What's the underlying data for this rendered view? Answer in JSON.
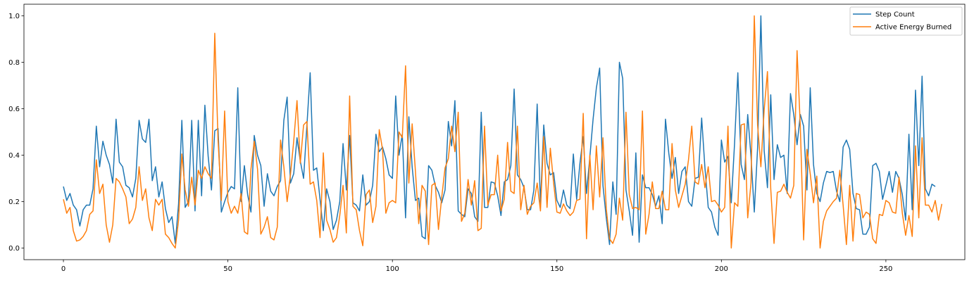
{
  "chart_data": {
    "type": "line",
    "title": "",
    "xlabel": "",
    "ylabel": "",
    "xlim": [
      -12,
      274
    ],
    "ylim": [
      -0.05,
      1.05
    ],
    "xticks": [
      0,
      50,
      100,
      150,
      200,
      250
    ],
    "yticks": [
      0.0,
      0.2,
      0.4,
      0.6,
      0.8,
      1.0
    ],
    "xtick_labels": [
      "0",
      "50",
      "100",
      "150",
      "200",
      "250"
    ],
    "ytick_labels": [
      "0.0",
      "0.2",
      "0.4",
      "0.6",
      "0.8",
      "1.0"
    ],
    "grid": false,
    "legend_position": "top-right",
    "series": [
      {
        "name": "Step Count",
        "color": "#1f77b4",
        "values": [
          0.265,
          0.205,
          0.235,
          0.185,
          0.165,
          0.095,
          0.165,
          0.185,
          0.185,
          0.255,
          0.525,
          0.35,
          0.46,
          0.4,
          0.36,
          0.28,
          0.555,
          0.37,
          0.35,
          0.27,
          0.26,
          0.22,
          0.3,
          0.55,
          0.47,
          0.455,
          0.555,
          0.29,
          0.35,
          0.22,
          0.285,
          0.17,
          0.11,
          0.135,
          0.02,
          0.19,
          0.55,
          0.175,
          0.2,
          0.55,
          0.16,
          0.55,
          0.225,
          0.615,
          0.395,
          0.25,
          0.505,
          0.515,
          0.155,
          0.2,
          0.24,
          0.265,
          0.255,
          0.69,
          0.2,
          0.355,
          0.23,
          0.155,
          0.485,
          0.4,
          0.355,
          0.18,
          0.32,
          0.245,
          0.225,
          0.265,
          0.29,
          0.55,
          0.65,
          0.28,
          0.32,
          0.475,
          0.375,
          0.3,
          0.525,
          0.755,
          0.335,
          0.345,
          0.21,
          0.075,
          0.255,
          0.2,
          0.08,
          0.12,
          0.2,
          0.45,
          0.25,
          0.485,
          0.195,
          0.185,
          0.16,
          0.315,
          0.185,
          0.2,
          0.27,
          0.49,
          0.415,
          0.435,
          0.385,
          0.315,
          0.3,
          0.655,
          0.4,
          0.49,
          0.13,
          0.565,
          0.35,
          0.205,
          0.215,
          0.05,
          0.04,
          0.355,
          0.335,
          0.27,
          0.24,
          0.195,
          0.25,
          0.545,
          0.44,
          0.635,
          0.16,
          0.145,
          0.135,
          0.255,
          0.235,
          0.135,
          0.115,
          0.585,
          0.175,
          0.175,
          0.285,
          0.28,
          0.225,
          0.14,
          0.285,
          0.295,
          0.355,
          0.685,
          0.315,
          0.295,
          0.26,
          0.165,
          0.165,
          0.25,
          0.62,
          0.19,
          0.53,
          0.365,
          0.315,
          0.325,
          0.205,
          0.175,
          0.25,
          0.185,
          0.17,
          0.405,
          0.21,
          0.365,
          0.48,
          0.235,
          0.39,
          0.555,
          0.69,
          0.775,
          0.27,
          0.13,
          0.015,
          0.285,
          0.145,
          0.8,
          0.73,
          0.25,
          0.16,
          0.055,
          0.41,
          0.025,
          0.315,
          0.26,
          0.26,
          0.23,
          0.18,
          0.225,
          0.105,
          0.555,
          0.41,
          0.3,
          0.39,
          0.235,
          0.33,
          0.35,
          0.2,
          0.18,
          0.3,
          0.305,
          0.56,
          0.345,
          0.175,
          0.155,
          0.09,
          0.055,
          0.465,
          0.37,
          0.395,
          0.195,
          0.45,
          0.755,
          0.36,
          0.295,
          0.575,
          0.395,
          0.155,
          0.43,
          1.0,
          0.42,
          0.26,
          0.66,
          0.295,
          0.445,
          0.39,
          0.4,
          0.235,
          0.665,
          0.575,
          0.445,
          0.575,
          0.525,
          0.25,
          0.69,
          0.36,
          0.235,
          0.2,
          0.28,
          0.33,
          0.325,
          0.33,
          0.245,
          0.2,
          0.435,
          0.465,
          0.425,
          0.235,
          0.17,
          0.165,
          0.06,
          0.06,
          0.09,
          0.355,
          0.365,
          0.33,
          0.21,
          0.27,
          0.33,
          0.24,
          0.33,
          0.3,
          0.23,
          0.12,
          0.49,
          0.165,
          0.68,
          0.355,
          0.74,
          0.255,
          0.225,
          0.275,
          0.265
        ]
      },
      {
        "name": "Active Energy Burned",
        "color": "#ff7f0e",
        "values": [
          0.21,
          0.15,
          0.175,
          0.075,
          0.03,
          0.035,
          0.05,
          0.075,
          0.145,
          0.16,
          0.38,
          0.235,
          0.275,
          0.1,
          0.025,
          0.1,
          0.3,
          0.285,
          0.255,
          0.22,
          0.105,
          0.125,
          0.175,
          0.35,
          0.205,
          0.255,
          0.13,
          0.075,
          0.21,
          0.185,
          0.21,
          0.06,
          0.045,
          0.02,
          0.0,
          0.12,
          0.405,
          0.25,
          0.18,
          0.305,
          0.185,
          0.335,
          0.3,
          0.35,
          0.32,
          0.3,
          0.925,
          0.465,
          0.205,
          0.59,
          0.2,
          0.15,
          0.18,
          0.15,
          0.235,
          0.07,
          0.06,
          0.34,
          0.46,
          0.34,
          0.06,
          0.09,
          0.135,
          0.045,
          0.035,
          0.09,
          0.465,
          0.35,
          0.2,
          0.315,
          0.46,
          0.635,
          0.365,
          0.53,
          0.545,
          0.275,
          0.285,
          0.205,
          0.045,
          0.41,
          0.12,
          0.08,
          0.025,
          0.045,
          0.14,
          0.27,
          0.065,
          0.655,
          0.18,
          0.165,
          0.075,
          0.01,
          0.23,
          0.25,
          0.11,
          0.18,
          0.51,
          0.425,
          0.15,
          0.195,
          0.205,
          0.195,
          0.5,
          0.475,
          0.785,
          0.28,
          0.535,
          0.33,
          0.105,
          0.27,
          0.245,
          0.015,
          0.27,
          0.28,
          0.08,
          0.22,
          0.345,
          0.385,
          0.525,
          0.415,
          0.585,
          0.115,
          0.15,
          0.295,
          0.185,
          0.29,
          0.075,
          0.085,
          0.525,
          0.185,
          0.23,
          0.23,
          0.4,
          0.16,
          0.21,
          0.455,
          0.245,
          0.235,
          0.525,
          0.165,
          0.27,
          0.145,
          0.18,
          0.195,
          0.28,
          0.16,
          0.48,
          0.175,
          0.43,
          0.28,
          0.155,
          0.15,
          0.19,
          0.16,
          0.14,
          0.155,
          0.205,
          0.21,
          0.58,
          0.04,
          0.4,
          0.165,
          0.44,
          0.22,
          0.475,
          0.17,
          0.04,
          0.02,
          0.06,
          0.215,
          0.12,
          0.585,
          0.23,
          0.17,
          0.175,
          0.165,
          0.59,
          0.06,
          0.145,
          0.285,
          0.17,
          0.17,
          0.245,
          0.165,
          0.165,
          0.45,
          0.25,
          0.175,
          0.225,
          0.275,
          0.38,
          0.525,
          0.285,
          0.275,
          0.36,
          0.26,
          0.35,
          0.2,
          0.205,
          0.185,
          0.155,
          0.175,
          0.525,
          0.0,
          0.195,
          0.18,
          0.53,
          0.535,
          0.13,
          0.28,
          1.0,
          0.53,
          0.35,
          0.595,
          0.76,
          0.255,
          0.02,
          0.24,
          0.245,
          0.275,
          0.24,
          0.215,
          0.27,
          0.85,
          0.52,
          0.035,
          0.425,
          0.32,
          0.195,
          0.31,
          0.0,
          0.115,
          0.16,
          0.18,
          0.2,
          0.215,
          0.335,
          0.185,
          0.015,
          0.27,
          0.03,
          0.235,
          0.23,
          0.13,
          0.155,
          0.145,
          0.04,
          0.02,
          0.145,
          0.14,
          0.205,
          0.195,
          0.155,
          0.15,
          0.305,
          0.15,
          0.055,
          0.14,
          0.05,
          0.44,
          0.13,
          0.475,
          0.185,
          0.185,
          0.155,
          0.205,
          0.12,
          0.19
        ]
      }
    ]
  }
}
